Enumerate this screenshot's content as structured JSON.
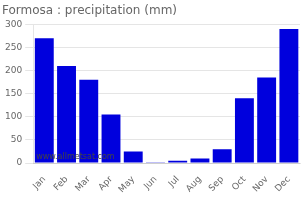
{
  "chart_data": {
    "type": "bar",
    "title": "Formosa : precipitation (mm)",
    "categories": [
      "Jan",
      "Feb",
      "Mar",
      "Apr",
      "May",
      "Jun",
      "Jul",
      "Aug",
      "Sep",
      "Oct",
      "Nov",
      "Dec"
    ],
    "values": [
      270,
      210,
      180,
      105,
      25,
      2,
      5,
      10,
      30,
      140,
      185,
      290
    ],
    "color": "#0000dd",
    "ylim": [
      0,
      300
    ],
    "yticks": [
      0,
      50,
      100,
      150,
      200,
      250,
      300
    ],
    "grid": true,
    "annotations": [
      "www.allmetsat.com"
    ]
  }
}
